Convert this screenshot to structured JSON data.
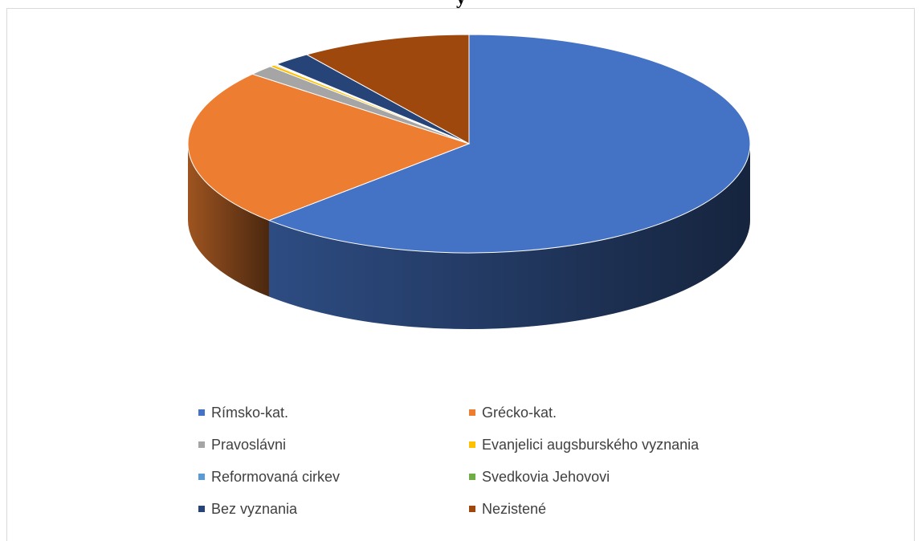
{
  "title": "y",
  "chart_data": {
    "type": "pie",
    "title": "y",
    "legend_position": "bottom",
    "categories": [
      "Rímsko-kat.",
      "Grécko-kat.",
      "Pravoslávni",
      "Evanjelici augsburského vyznania",
      "Reformovaná cirkev",
      "Svedkovia Jehovovi",
      "Bez vyznania",
      "Nezistené"
    ],
    "values": [
      62.6,
      23.4,
      1.5,
      0.3,
      0.1,
      0.1,
      2.2,
      9.8
    ],
    "unit": "%",
    "colors": [
      "#4472c4",
      "#ed7d31",
      "#a5a5a5",
      "#ffc000",
      "#5b9bd5",
      "#70ad47",
      "#264478",
      "#9e480e"
    ]
  }
}
